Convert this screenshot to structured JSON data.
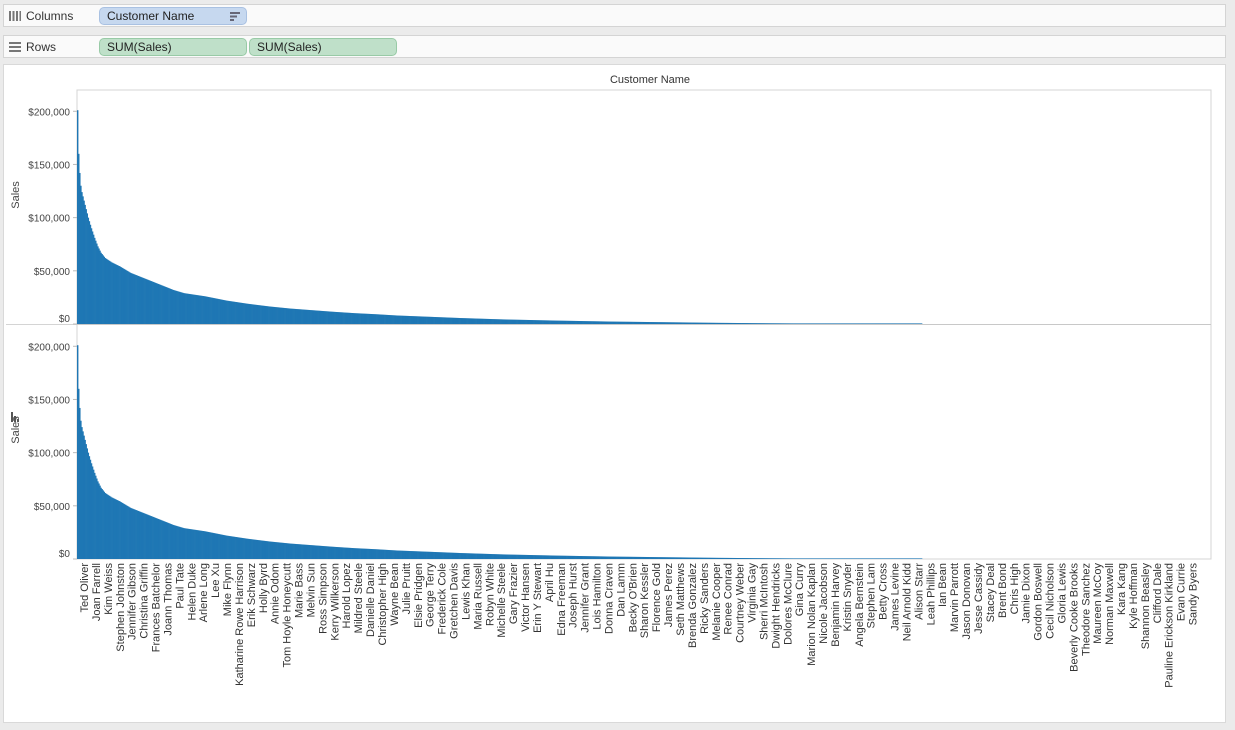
{
  "shelves": {
    "columns": {
      "label": "Columns",
      "pills": [
        "Customer Name"
      ]
    },
    "rows": {
      "label": "Rows",
      "pills": [
        "SUM(Sales)",
        "SUM(Sales)"
      ]
    }
  },
  "colors": {
    "bar": "#1f77b4",
    "dimension_pill": "#c6d8ef",
    "measure_pill": "#bfe0c9"
  },
  "chart_data": {
    "type": "bar",
    "header": "Customer Name",
    "ylabel": "Sales",
    "ylim": [
      0,
      220000
    ],
    "y_ticks": [
      "$0",
      "$50,000",
      "$100,000",
      "$150,000",
      "$200,000"
    ],
    "panes": 2,
    "total_bar_count": 794,
    "visible_x_labels": [
      "Ted Oliver",
      "Joan Farrell",
      "Kim Weiss",
      "Stephen Johnston",
      "Jennifer Gibson",
      "Christina Griffin",
      "Frances Batchelor",
      "Joann Thomas",
      "Paul Tate",
      "Helen Duke",
      "Arlene Long",
      "Lee Xu",
      "Mike Flynn",
      "Katharine Rowe Harrison",
      "Erik Schwarz",
      "Holly Byrd",
      "Annie Odom",
      "Tom Hoyle Honeycutt",
      "Marie Bass",
      "Melvin Sun",
      "Ross Simpson",
      "Kerry Wilkerson",
      "Harold Lopez",
      "Mildred Steele",
      "Danielle Daniel",
      "Christopher High",
      "Wayne Bean",
      "Julie Pruitt",
      "Elsie Pridgen",
      "George Terry",
      "Frederick Cole",
      "Gretchen Davis",
      "Lewis Khan",
      "Maria Russell",
      "Robyn White",
      "Michelle Steele",
      "Gary Frazier",
      "Victor Hansen",
      "Erin Y Stewart",
      "April Hu",
      "Edna Freeman",
      "Joseph Hurst",
      "Jennifer Grant",
      "Lois Hamilton",
      "Donna Craven",
      "Dan Lamm",
      "Becky O'Brien",
      "Sharon Kessler",
      "Florence Gold",
      "James Perez",
      "Seth Matthews",
      "Brenda Gonzalez",
      "Ricky Sanders",
      "Melanie Cooper",
      "Renee Conrad",
      "Courtney Weber",
      "Virginia Gay",
      "Sherri McIntosh",
      "Dwight Hendricks",
      "Dolores McClure",
      "Gina Curry",
      "Marion Nolan Kaplan",
      "Nicole Jacobson",
      "Benjamin Harvey",
      "Kristin Snyder",
      "Angela Bernstein",
      "Stephen Lam",
      "Betty Cross",
      "James Levine",
      "Neil Arnold Kidd",
      "Alison Starr",
      "Leah Phillips",
      "Ian Bean",
      "Marvin Parrott",
      "Jason Donovan",
      "Jesse Cassidy",
      "Stacey Deal",
      "Brent Bond",
      "Chris High",
      "Jamie Dixon",
      "Gordon Boswell",
      "Cecil Nicholson",
      "Gloria Lewis",
      "Beverly Cooke Brooks",
      "Theodore Sanchez",
      "Maureen McCoy",
      "Norman Maxwell",
      "Kara Kang",
      "Kyle Hoffman",
      "Shannon Beasley",
      "Clifford Dale",
      "Pauline Erickson Kirkland",
      "Evan Currie",
      "Sandy Byers"
    ],
    "sorted_values_profile": [
      [
        0,
        201000
      ],
      [
        1,
        160000
      ],
      [
        2,
        142000
      ],
      [
        3,
        130000
      ],
      [
        4,
        124000
      ],
      [
        6,
        116000
      ],
      [
        8,
        108000
      ],
      [
        10,
        100000
      ],
      [
        13,
        90000
      ],
      [
        16,
        81000
      ],
      [
        19,
        73000
      ],
      [
        22,
        67000
      ],
      [
        26,
        62000
      ],
      [
        32,
        58000
      ],
      [
        40,
        54000
      ],
      [
        50,
        48000
      ],
      [
        60,
        44000
      ],
      [
        70,
        40000
      ],
      [
        80,
        36000
      ],
      [
        90,
        32000
      ],
      [
        100,
        29000
      ],
      [
        120,
        26000
      ],
      [
        140,
        22000
      ],
      [
        160,
        19000
      ],
      [
        180,
        16500
      ],
      [
        200,
        14500
      ],
      [
        220,
        13000
      ],
      [
        240,
        11500
      ],
      [
        260,
        10200
      ],
      [
        280,
        9200
      ],
      [
        300,
        8000
      ],
      [
        330,
        6800
      ],
      [
        360,
        5600
      ],
      [
        400,
        4300
      ],
      [
        450,
        3200
      ],
      [
        500,
        2300
      ],
      [
        550,
        1700
      ],
      [
        600,
        1100
      ],
      [
        650,
        700
      ],
      [
        700,
        400
      ],
      [
        760,
        200
      ],
      [
        793,
        80
      ]
    ]
  }
}
